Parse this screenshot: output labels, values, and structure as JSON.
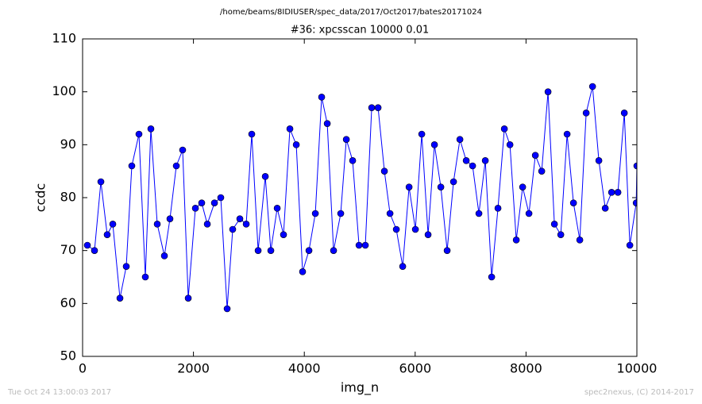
{
  "header": "/home/beams/8IDIUSER/spec_data/2017/Oct2017/bates20171024",
  "footer_left": "Tue Oct 24 13:00:03 2017",
  "footer_right": "spec2nexus, (C) 2014-2017",
  "chart_data": {
    "type": "line",
    "title": "#36: xpcsscan 10000 0.01",
    "x_label": "img_n",
    "y_label": "ccdc",
    "x": [
      86,
      215,
      330,
      444,
      545,
      674,
      788,
      888,
      1017,
      1132,
      1232,
      1347,
      1476,
      1576,
      1691,
      1805,
      1906,
      2035,
      2149,
      2250,
      2379,
      2493,
      2608,
      2708,
      2837,
      2952,
      3052,
      3167,
      3296,
      3396,
      3511,
      3625,
      3740,
      3855,
      3969,
      4084,
      4199,
      4313,
      4414,
      4528,
      4657,
      4758,
      4872,
      4987,
      5101,
      5216,
      5331,
      5445,
      5546,
      5660,
      5775,
      5890,
      6004,
      6119,
      6233,
      6348,
      6463,
      6577,
      6692,
      6807,
      6921,
      7036,
      7150,
      7265,
      7380,
      7494,
      7609,
      7710,
      7824,
      7939,
      8053,
      8168,
      8283,
      8397,
      8512,
      8627,
      8741,
      8856,
      8970,
      9085,
      9200,
      9314,
      9429,
      9544,
      9658,
      9773,
      9873,
      9988,
      10000
    ],
    "series": [
      {
        "name": "ccdc",
        "color": "#0000ff",
        "values": [
          71,
          70,
          83,
          73,
          75,
          61,
          67,
          86,
          92,
          65,
          93,
          75,
          69,
          76,
          86,
          89,
          61,
          78,
          79,
          75,
          79,
          80,
          59,
          74,
          76,
          75,
          92,
          70,
          84,
          70,
          78,
          73,
          93,
          90,
          66,
          70,
          77,
          99,
          94,
          70,
          77,
          91,
          87,
          71,
          71,
          97,
          97,
          85,
          77,
          74,
          67,
          82,
          74,
          92,
          73,
          90,
          82,
          70,
          83,
          91,
          87,
          86,
          77,
          87,
          65,
          78,
          93,
          90,
          72,
          82,
          77,
          88,
          85,
          100,
          75,
          73,
          92,
          79,
          72,
          96,
          101,
          87,
          78,
          81,
          81,
          96,
          71,
          79,
          86
        ]
      }
    ],
    "xlim": [
      0,
      10000
    ],
    "xticks": [
      0,
      2000,
      4000,
      6000,
      8000,
      10000
    ],
    "ylim": [
      50,
      110
    ],
    "yticks": [
      50,
      60,
      70,
      80,
      90,
      100,
      110
    ]
  }
}
